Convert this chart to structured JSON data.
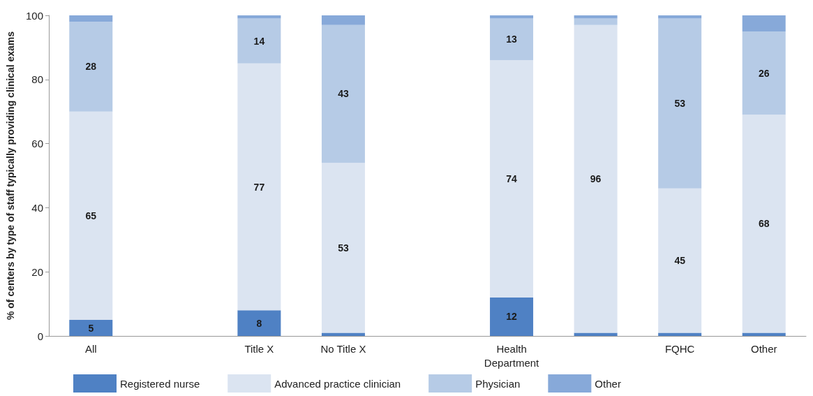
{
  "chart_data": {
    "type": "bar",
    "stacked": true,
    "ylabel": "% of centers by type of staff typically providing clinical exams",
    "categories": [
      "All",
      null,
      "Title X",
      "No Title X",
      null,
      "Health\nDepartment",
      null,
      "FQHC",
      "Other"
    ],
    "series": [
      {
        "name": "Registered nurse",
        "color": "#4f81c4",
        "values": [
          5,
          null,
          8,
          1,
          null,
          12,
          1,
          1,
          1
        ],
        "value_labels": [
          "5",
          null,
          "8",
          null,
          null,
          "12",
          null,
          null,
          null
        ]
      },
      {
        "name": "Advanced practice clinician",
        "color": "#dbe4f1",
        "values": [
          65,
          null,
          77,
          53,
          null,
          74,
          96,
          45,
          68
        ],
        "value_labels": [
          "65",
          null,
          "77",
          "53",
          null,
          "74",
          "96",
          "45",
          "68"
        ]
      },
      {
        "name": "Physician",
        "color": "#b6cbe6",
        "values": [
          28,
          null,
          14,
          43,
          null,
          13,
          2,
          53,
          26
        ],
        "value_labels": [
          "28",
          null,
          "14",
          "43",
          null,
          "13",
          null,
          "53",
          "26"
        ]
      },
      {
        "name": "Other",
        "color": "#87a9d9",
        "values": [
          2,
          null,
          1,
          3,
          null,
          1,
          1,
          1,
          5
        ],
        "value_labels": [
          null,
          null,
          null,
          null,
          null,
          null,
          null,
          null,
          null
        ]
      }
    ],
    "ylim": [
      0,
      100
    ],
    "yticks": [
      0,
      20,
      40,
      60,
      80,
      100
    ],
    "grid": false,
    "legend": "bottom"
  }
}
